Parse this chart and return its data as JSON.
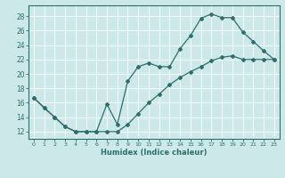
{
  "xlabel": "Humidex (Indice chaleur)",
  "bg_color": "#cce8e8",
  "grid_color": "#ffffff",
  "line_color": "#2d6e6e",
  "xlim": [
    -0.5,
    23.5
  ],
  "ylim": [
    11,
    29.5
  ],
  "xticks": [
    0,
    1,
    2,
    3,
    4,
    5,
    6,
    7,
    8,
    9,
    10,
    11,
    12,
    13,
    14,
    15,
    16,
    17,
    18,
    19,
    20,
    21,
    22,
    23
  ],
  "yticks": [
    12,
    14,
    16,
    18,
    20,
    22,
    24,
    26,
    28
  ],
  "line1_x": [
    0,
    1,
    2,
    3,
    4,
    5,
    6,
    7,
    8,
    9,
    10,
    11,
    12,
    13,
    14,
    15,
    16,
    17,
    18,
    19,
    20,
    21,
    22,
    23
  ],
  "line1_y": [
    16.7,
    15.3,
    14.0,
    12.7,
    12.0,
    12.0,
    12.0,
    15.8,
    13.0,
    19.0,
    21.0,
    21.5,
    21.0,
    21.0,
    23.5,
    25.3,
    27.7,
    28.3,
    27.8,
    27.8,
    25.8,
    24.5,
    23.2,
    22.0
  ],
  "line2_x": [
    0,
    1,
    2,
    3,
    4,
    5,
    6,
    7,
    8,
    9,
    10,
    11,
    12,
    13,
    14,
    15,
    16,
    17,
    18,
    19,
    20,
    21,
    22,
    23
  ],
  "line2_y": [
    16.7,
    15.3,
    14.0,
    12.7,
    12.0,
    12.0,
    12.0,
    12.0,
    12.0,
    13.0,
    14.5,
    16.0,
    17.2,
    18.5,
    19.5,
    20.3,
    21.0,
    21.8,
    22.3,
    22.5,
    22.0,
    22.0,
    22.0,
    22.0
  ]
}
